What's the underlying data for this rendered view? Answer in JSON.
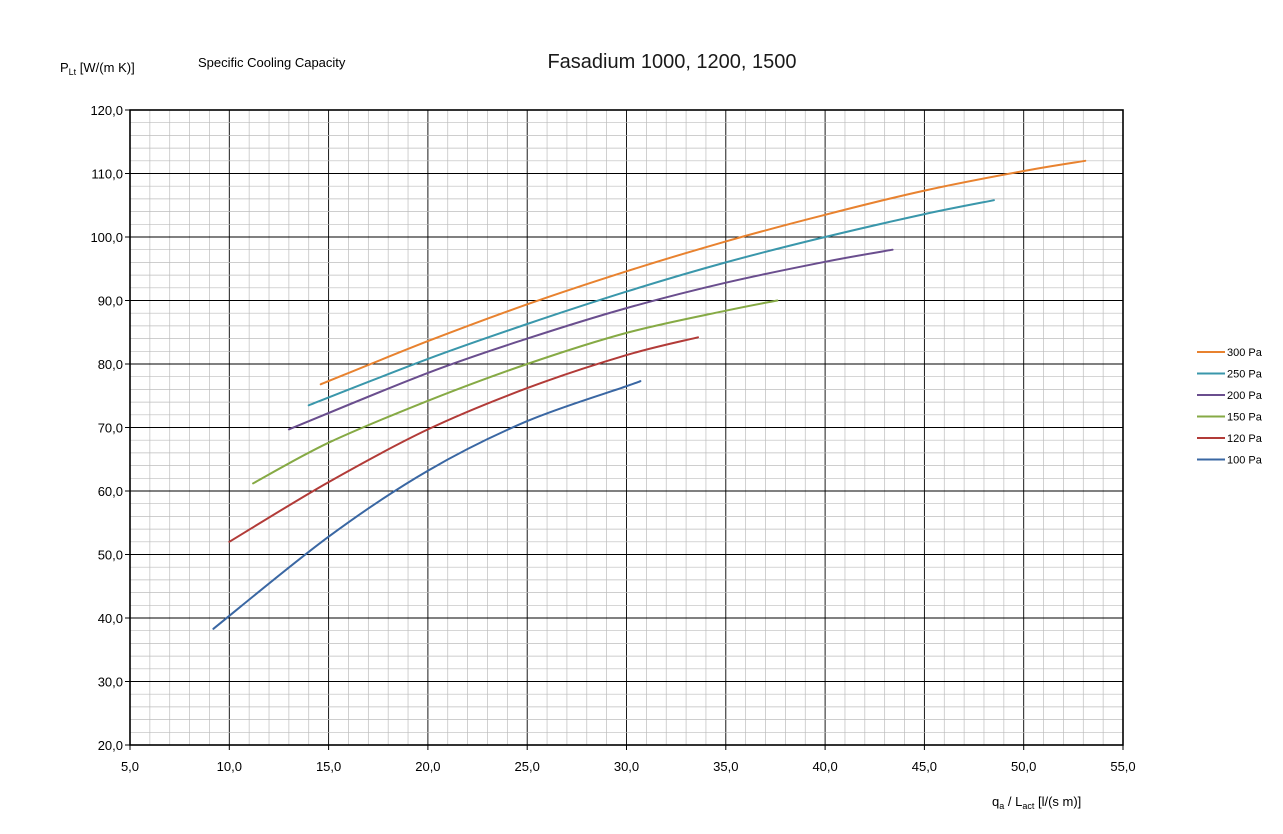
{
  "chart_data": {
    "type": "line",
    "title": "Fasadium 1000, 1200, 1500",
    "subtitle": "Specific Cooling Capacity",
    "ylabel": {
      "main": "P",
      "sub": "Lt",
      "rest": " [W/(m K)]"
    },
    "xlabel": {
      "q": "q",
      "q_sub": "a",
      "mid": " / L",
      "l_sub": "act",
      "rest": " [l/(s m)]"
    },
    "xlim": [
      5,
      55
    ],
    "ylim": [
      20,
      120
    ],
    "x_major": 5,
    "x_minor": 1,
    "y_major": 10,
    "y_minor": 2,
    "grid": true,
    "legend_position": "right",
    "xticks": [
      "5,0",
      "10,0",
      "15,0",
      "20,0",
      "25,0",
      "30,0",
      "35,0",
      "40,0",
      "45,0",
      "50,0",
      "55,0"
    ],
    "yticks": [
      "20,0",
      "30,0",
      "40,0",
      "50,0",
      "60,0",
      "70,0",
      "80,0",
      "90,0",
      "100,0",
      "110,0",
      "120,0"
    ],
    "series": [
      {
        "name": "300 Pa",
        "color": "#e8822f",
        "points": [
          [
            14.6,
            76.8
          ],
          [
            20,
            83.6
          ],
          [
            25,
            89.4
          ],
          [
            30,
            94.6
          ],
          [
            35,
            99.3
          ],
          [
            40,
            103.5
          ],
          [
            45,
            107.3
          ],
          [
            50,
            110.4
          ],
          [
            53.1,
            112.0
          ]
        ]
      },
      {
        "name": "250 Pa",
        "color": "#3a97ab",
        "points": [
          [
            14,
            73.5
          ],
          [
            20,
            80.8
          ],
          [
            25,
            86.3
          ],
          [
            30,
            91.4
          ],
          [
            35,
            96.0
          ],
          [
            40,
            100.0
          ],
          [
            45,
            103.6
          ],
          [
            48.5,
            105.8
          ]
        ]
      },
      {
        "name": "200 Pa",
        "color": "#6a4e8e",
        "points": [
          [
            13,
            69.7
          ],
          [
            20,
            78.6
          ],
          [
            25,
            84.0
          ],
          [
            30,
            88.8
          ],
          [
            35,
            92.8
          ],
          [
            40,
            96.1
          ],
          [
            43.4,
            98.0
          ]
        ]
      },
      {
        "name": "150 Pa",
        "color": "#86aa45",
        "points": [
          [
            11.2,
            61.2
          ],
          [
            15,
            67.6
          ],
          [
            20,
            74.2
          ],
          [
            25,
            80.0
          ],
          [
            30,
            84.9
          ],
          [
            35,
            88.4
          ],
          [
            37.6,
            90.0
          ]
        ]
      },
      {
        "name": "120 Pa",
        "color": "#b23b38",
        "points": [
          [
            10,
            52.0
          ],
          [
            15,
            61.4
          ],
          [
            20,
            69.7
          ],
          [
            25,
            76.2
          ],
          [
            30,
            81.4
          ],
          [
            33.6,
            84.2
          ]
        ]
      },
      {
        "name": "100 Pa",
        "color": "#3a67a3",
        "points": [
          [
            9.2,
            38.3
          ],
          [
            15,
            52.8
          ],
          [
            20,
            63.2
          ],
          [
            25,
            71.0
          ],
          [
            30,
            76.5
          ],
          [
            30.7,
            77.3
          ]
        ]
      }
    ]
  }
}
